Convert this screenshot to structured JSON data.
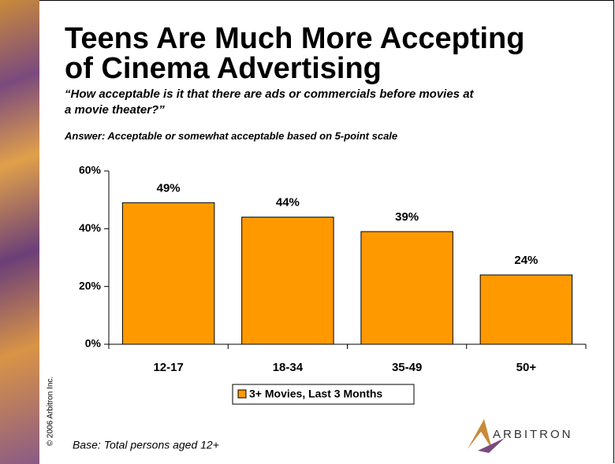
{
  "chart_data": {
    "type": "bar",
    "title": [
      "Teens Are Much More Accepting",
      "of Cinema Advertising"
    ],
    "subtitle": [
      "“How acceptable is it that there are ads or commercials before movies at",
      "a movie theater?”"
    ],
    "answer": "Answer:  Acceptable or somewhat acceptable based on 5-point scale",
    "categories": [
      "12-17",
      "18-34",
      "35-49",
      "50+"
    ],
    "series": [
      {
        "name": "3+ Movies, Last 3 Months",
        "color": "#ff9900",
        "values": [
          49,
          44,
          39,
          24
        ],
        "value_labels": [
          "49%",
          "44%",
          "39%",
          "24%"
        ]
      }
    ],
    "ylim": [
      0,
      60
    ],
    "yticks": [
      {
        "value": 0,
        "label": "0%"
      },
      {
        "value": 20,
        "label": "20%"
      },
      {
        "value": 40,
        "label": "40%"
      },
      {
        "value": 60,
        "label": "60%"
      }
    ],
    "grid": false,
    "legend": "bottom",
    "note": "Base:  Total persons aged 12+",
    "copyright": "© 2006 Arbitron Inc.",
    "logo": "ARBITRON"
  }
}
